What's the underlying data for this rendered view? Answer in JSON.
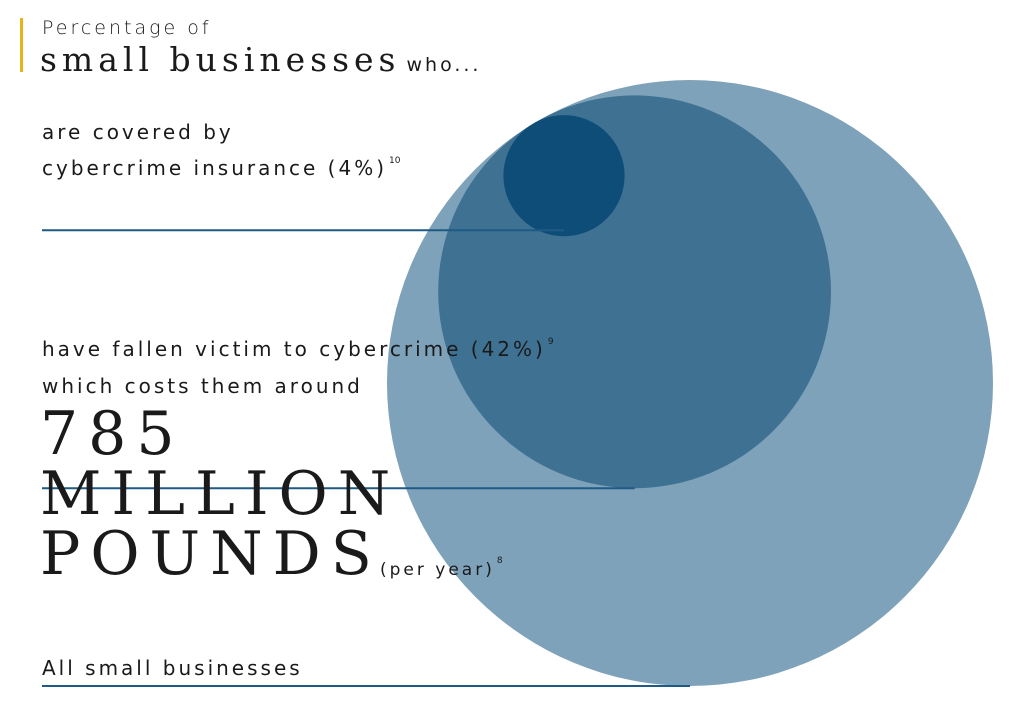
{
  "title": {
    "line1": "Percentage of",
    "strong": "small businesses",
    "tail": "who..."
  },
  "chart_data": {
    "type": "bubble",
    "unit": "%",
    "items": [
      {
        "label": "All small businesses",
        "value": 100,
        "color": "#7ea2b9"
      },
      {
        "label": "have fallen victim to cybercrime (42%)",
        "footnote": "9",
        "value": 42,
        "color": "#3f7193"
      },
      {
        "label": "are covered by cybercrime insurance (4%)",
        "label_line1": "are covered by",
        "label_line2": "cybercrime insurance (4%)",
        "footnote": "10",
        "value": 4,
        "color": "#0e4d78"
      }
    ]
  },
  "cost": {
    "intro": "which costs them around",
    "line1": "785",
    "line2": "MILLION",
    "line3": "POUNDS",
    "per_year": "(per year)",
    "footnote": "8"
  },
  "colors": {
    "accent": "#e8b21a",
    "leader_line": "#1f5a84"
  }
}
